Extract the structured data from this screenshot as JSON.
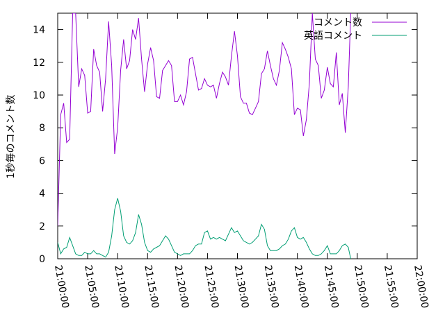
{
  "chart_data": {
    "type": "line",
    "ylabel": "1秒毎のコメント数",
    "ylim": [
      0,
      15
    ],
    "yticks": [
      0,
      2,
      4,
      6,
      8,
      10,
      12,
      14
    ],
    "xlim": [
      0,
      60
    ],
    "xticks": [
      {
        "minute": 0,
        "label": "21:00:00"
      },
      {
        "minute": 5,
        "label": "21:05:00"
      },
      {
        "minute": 10,
        "label": "21:10:00"
      },
      {
        "minute": 15,
        "label": "21:15:00"
      },
      {
        "minute": 20,
        "label": "21:20:00"
      },
      {
        "minute": 25,
        "label": "21:25:00"
      },
      {
        "minute": 30,
        "label": "21:30:00"
      },
      {
        "minute": 35,
        "label": "21:35:00"
      },
      {
        "minute": 40,
        "label": "21:40:00"
      },
      {
        "minute": 45,
        "label": "21:45:00"
      },
      {
        "minute": 50,
        "label": "21:50:00"
      },
      {
        "minute": 55,
        "label": "21:55:00"
      },
      {
        "minute": 60,
        "label": "22:00:00"
      }
    ],
    "legend_position": "top-right",
    "grid": false,
    "series": [
      {
        "name": "コメント数",
        "color": "#9400d3",
        "points": [
          [
            0.0,
            2.0
          ],
          [
            0.5,
            8.8
          ],
          [
            1.0,
            9.5
          ],
          [
            1.5,
            7.1
          ],
          [
            2.0,
            7.3
          ],
          [
            2.5,
            15.0
          ],
          [
            3.0,
            15.0
          ],
          [
            3.5,
            10.5
          ],
          [
            4.0,
            11.6
          ],
          [
            4.5,
            11.2
          ],
          [
            5.0,
            8.9
          ],
          [
            5.5,
            9.0
          ],
          [
            6.0,
            12.8
          ],
          [
            6.5,
            11.8
          ],
          [
            7.0,
            11.4
          ],
          [
            7.5,
            9.0
          ],
          [
            8.0,
            11.0
          ],
          [
            8.5,
            14.5
          ],
          [
            9.0,
            11.8
          ],
          [
            9.5,
            6.4
          ],
          [
            10.0,
            8.0
          ],
          [
            10.5,
            11.5
          ],
          [
            11.0,
            13.4
          ],
          [
            11.5,
            11.6
          ],
          [
            12.0,
            12.1
          ],
          [
            12.5,
            14.0
          ],
          [
            13.0,
            13.4
          ],
          [
            13.5,
            14.7
          ],
          [
            14.0,
            12.2
          ],
          [
            14.5,
            10.2
          ],
          [
            15.0,
            11.9
          ],
          [
            15.5,
            12.9
          ],
          [
            16.0,
            12.1
          ],
          [
            16.5,
            9.9
          ],
          [
            17.0,
            9.8
          ],
          [
            17.5,
            11.5
          ],
          [
            18.0,
            11.8
          ],
          [
            18.5,
            12.1
          ],
          [
            19.0,
            11.8
          ],
          [
            19.5,
            9.6
          ],
          [
            20.0,
            9.6
          ],
          [
            20.5,
            10.0
          ],
          [
            21.0,
            9.4
          ],
          [
            21.5,
            10.2
          ],
          [
            22.0,
            12.2
          ],
          [
            22.5,
            12.3
          ],
          [
            23.0,
            11.3
          ],
          [
            23.5,
            10.3
          ],
          [
            24.0,
            10.4
          ],
          [
            24.5,
            11.0
          ],
          [
            25.0,
            10.6
          ],
          [
            25.5,
            10.5
          ],
          [
            26.0,
            10.6
          ],
          [
            26.5,
            9.8
          ],
          [
            27.0,
            10.7
          ],
          [
            27.5,
            11.4
          ],
          [
            28.0,
            11.1
          ],
          [
            28.5,
            10.6
          ],
          [
            29.0,
            12.4
          ],
          [
            29.5,
            13.9
          ],
          [
            30.0,
            12.4
          ],
          [
            30.5,
            9.9
          ],
          [
            31.0,
            9.5
          ],
          [
            31.5,
            9.5
          ],
          [
            32.0,
            8.9
          ],
          [
            32.5,
            8.8
          ],
          [
            33.0,
            9.2
          ],
          [
            33.5,
            9.6
          ],
          [
            34.0,
            11.3
          ],
          [
            34.5,
            11.6
          ],
          [
            35.0,
            12.7
          ],
          [
            35.5,
            11.8
          ],
          [
            36.0,
            11.0
          ],
          [
            36.5,
            10.6
          ],
          [
            37.0,
            11.5
          ],
          [
            37.5,
            13.2
          ],
          [
            38.0,
            12.8
          ],
          [
            38.5,
            12.3
          ],
          [
            39.0,
            11.6
          ],
          [
            39.5,
            8.8
          ],
          [
            40.0,
            9.2
          ],
          [
            40.5,
            9.1
          ],
          [
            41.0,
            7.5
          ],
          [
            41.5,
            8.5
          ],
          [
            42.0,
            10.7
          ],
          [
            42.5,
            15.0
          ],
          [
            43.0,
            12.2
          ],
          [
            43.5,
            11.8
          ],
          [
            44.0,
            9.8
          ],
          [
            44.5,
            10.3
          ],
          [
            45.0,
            11.7
          ],
          [
            45.5,
            10.7
          ],
          [
            46.0,
            10.5
          ],
          [
            46.5,
            12.6
          ],
          [
            47.0,
            9.4
          ],
          [
            47.5,
            10.1
          ],
          [
            48.0,
            7.7
          ],
          [
            48.5,
            10.5
          ],
          [
            48.9,
            15.0
          ]
        ]
      },
      {
        "name": "英語コメント",
        "color": "#009e73",
        "points": [
          [
            0.0,
            1.0
          ],
          [
            0.5,
            0.3
          ],
          [
            1.0,
            0.6
          ],
          [
            1.5,
            0.7
          ],
          [
            2.0,
            1.3
          ],
          [
            2.5,
            0.8
          ],
          [
            3.0,
            0.3
          ],
          [
            3.5,
            0.2
          ],
          [
            4.0,
            0.2
          ],
          [
            4.5,
            0.4
          ],
          [
            5.0,
            0.3
          ],
          [
            5.5,
            0.3
          ],
          [
            6.0,
            0.5
          ],
          [
            6.5,
            0.3
          ],
          [
            7.0,
            0.3
          ],
          [
            7.5,
            0.2
          ],
          [
            8.0,
            0.1
          ],
          [
            8.5,
            0.4
          ],
          [
            9.0,
            1.4
          ],
          [
            9.5,
            3.0
          ],
          [
            10.0,
            3.7
          ],
          [
            10.5,
            2.9
          ],
          [
            11.0,
            1.4
          ],
          [
            11.5,
            1.0
          ],
          [
            12.0,
            0.9
          ],
          [
            12.5,
            1.1
          ],
          [
            13.0,
            1.6
          ],
          [
            13.5,
            2.7
          ],
          [
            14.0,
            2.1
          ],
          [
            14.5,
            1.0
          ],
          [
            15.0,
            0.5
          ],
          [
            15.5,
            0.4
          ],
          [
            16.0,
            0.6
          ],
          [
            16.5,
            0.7
          ],
          [
            17.0,
            0.8
          ],
          [
            17.5,
            1.1
          ],
          [
            18.0,
            1.4
          ],
          [
            18.5,
            1.2
          ],
          [
            19.0,
            0.8
          ],
          [
            19.5,
            0.4
          ],
          [
            20.0,
            0.3
          ],
          [
            20.5,
            0.2
          ],
          [
            21.0,
            0.3
          ],
          [
            21.5,
            0.3
          ],
          [
            22.0,
            0.3
          ],
          [
            22.5,
            0.5
          ],
          [
            23.0,
            0.8
          ],
          [
            23.5,
            0.9
          ],
          [
            24.0,
            0.9
          ],
          [
            24.5,
            1.6
          ],
          [
            25.0,
            1.7
          ],
          [
            25.5,
            1.2
          ],
          [
            26.0,
            1.3
          ],
          [
            26.5,
            1.2
          ],
          [
            27.0,
            1.3
          ],
          [
            27.5,
            1.2
          ],
          [
            28.0,
            1.1
          ],
          [
            28.5,
            1.5
          ],
          [
            29.0,
            1.9
          ],
          [
            29.5,
            1.6
          ],
          [
            30.0,
            1.7
          ],
          [
            30.5,
            1.4
          ],
          [
            31.0,
            1.1
          ],
          [
            31.5,
            1.0
          ],
          [
            32.0,
            0.9
          ],
          [
            32.5,
            1.0
          ],
          [
            33.0,
            1.2
          ],
          [
            33.5,
            1.4
          ],
          [
            34.0,
            2.1
          ],
          [
            34.5,
            1.8
          ],
          [
            35.0,
            0.8
          ],
          [
            35.5,
            0.5
          ],
          [
            36.0,
            0.5
          ],
          [
            36.5,
            0.5
          ],
          [
            37.0,
            0.6
          ],
          [
            37.5,
            0.8
          ],
          [
            38.0,
            0.9
          ],
          [
            38.5,
            1.2
          ],
          [
            39.0,
            1.7
          ],
          [
            39.5,
            1.9
          ],
          [
            40.0,
            1.3
          ],
          [
            40.5,
            1.2
          ],
          [
            41.0,
            1.3
          ],
          [
            41.5,
            1.0
          ],
          [
            42.0,
            0.6
          ],
          [
            42.5,
            0.3
          ],
          [
            43.0,
            0.2
          ],
          [
            43.5,
            0.2
          ],
          [
            44.0,
            0.3
          ],
          [
            44.5,
            0.5
          ],
          [
            45.0,
            0.8
          ],
          [
            45.5,
            0.3
          ],
          [
            46.0,
            0.3
          ],
          [
            46.5,
            0.3
          ],
          [
            47.0,
            0.5
          ],
          [
            47.5,
            0.8
          ],
          [
            48.0,
            0.9
          ],
          [
            48.5,
            0.7
          ],
          [
            48.9,
            0.0
          ]
        ]
      }
    ]
  }
}
